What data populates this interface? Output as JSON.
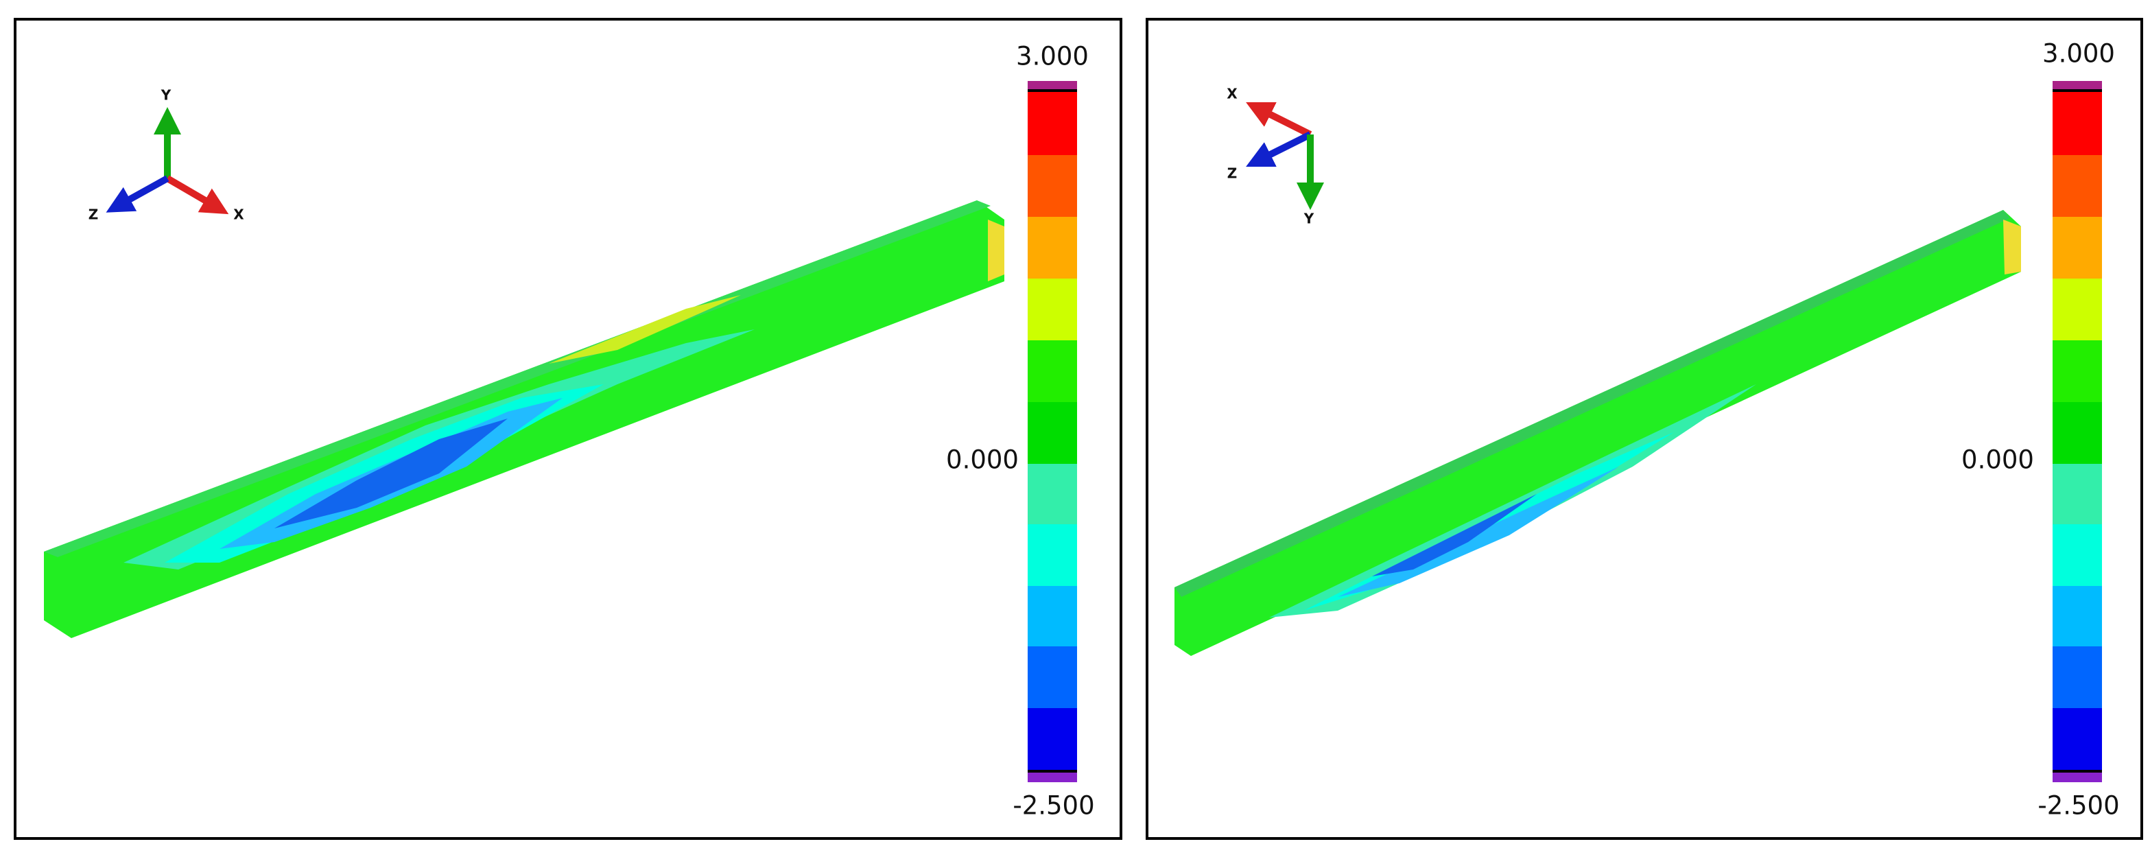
{
  "panels": [
    {
      "triad": {
        "x": "X",
        "y": "Y",
        "z": "Z"
      },
      "legend": {
        "max": "3.000",
        "mid": "0.000",
        "min": "-2.500"
      }
    },
    {
      "triad": {
        "x": "X",
        "y": "Y",
        "z": "Z"
      },
      "legend": {
        "max": "3.000",
        "mid": "0.000",
        "min": "-2.500"
      }
    }
  ]
}
